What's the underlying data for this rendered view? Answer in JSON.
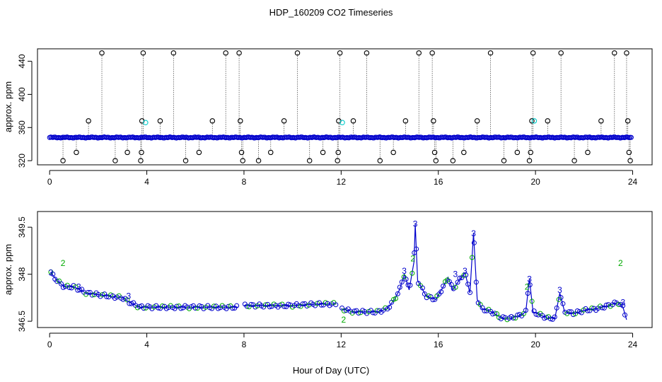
{
  "title": "HDP_160209  CO2 Timeseries",
  "xlabel": "Hour of Day (UTC)",
  "chart_data": [
    {
      "type": "scatter",
      "panel": "top",
      "ylabel": "approx. ppm",
      "xlim": [
        -0.5,
        24.8
      ],
      "ylim": [
        315,
        455
      ],
      "xticks": [
        0,
        4,
        8,
        12,
        16,
        20,
        24
      ],
      "yticks": [
        320,
        360,
        400,
        440
      ],
      "baseline": 348,
      "colors": {
        "baseline": "#0000cc",
        "spikes": "#000000",
        "cyan": "#00cccc"
      },
      "spikes": [
        [
          0.55,
          320
        ],
        [
          1.1,
          330
        ],
        [
          1.6,
          368
        ],
        [
          2.15,
          450
        ],
        [
          2.7,
          320
        ],
        [
          3.2,
          330
        ],
        [
          3.75,
          320
        ],
        [
          3.78,
          330
        ],
        [
          3.8,
          368
        ],
        [
          3.85,
          450
        ],
        [
          4.55,
          368
        ],
        [
          5.1,
          450
        ],
        [
          5.6,
          320
        ],
        [
          6.15,
          330
        ],
        [
          6.7,
          368
        ],
        [
          7.25,
          450
        ],
        [
          7.8,
          450
        ],
        [
          7.85,
          368
        ],
        [
          7.9,
          330
        ],
        [
          7.95,
          320
        ],
        [
          8.6,
          320
        ],
        [
          9.1,
          330
        ],
        [
          9.65,
          368
        ],
        [
          10.2,
          450
        ],
        [
          10.7,
          320
        ],
        [
          11.25,
          330
        ],
        [
          11.85,
          320
        ],
        [
          11.88,
          330
        ],
        [
          11.9,
          368
        ],
        [
          11.95,
          450
        ],
        [
          12.5,
          368
        ],
        [
          13.05,
          450
        ],
        [
          13.6,
          320
        ],
        [
          14.15,
          330
        ],
        [
          14.65,
          368
        ],
        [
          15.2,
          450
        ],
        [
          15.75,
          450
        ],
        [
          15.8,
          368
        ],
        [
          15.85,
          330
        ],
        [
          15.9,
          320
        ],
        [
          16.6,
          320
        ],
        [
          17.05,
          330
        ],
        [
          17.6,
          368
        ],
        [
          18.15,
          450
        ],
        [
          18.7,
          320
        ],
        [
          19.25,
          330
        ],
        [
          19.75,
          320
        ],
        [
          19.8,
          330
        ],
        [
          19.85,
          368
        ],
        [
          19.9,
          450
        ],
        [
          20.5,
          368
        ],
        [
          21.05,
          450
        ],
        [
          21.6,
          320
        ],
        [
          22.15,
          330
        ],
        [
          22.7,
          368
        ],
        [
          23.25,
          450
        ],
        [
          23.75,
          450
        ],
        [
          23.8,
          368
        ],
        [
          23.85,
          330
        ],
        [
          23.9,
          320
        ]
      ],
      "cyan_points": [
        [
          3.95,
          366
        ],
        [
          12.05,
          366
        ],
        [
          19.95,
          368
        ]
      ]
    },
    {
      "type": "line",
      "panel": "bottom",
      "ylabel": "approx. ppm",
      "xlim": [
        -0.5,
        24.8
      ],
      "ylim": [
        346.3,
        350.0
      ],
      "xticks": [
        0,
        4,
        8,
        12,
        16,
        20,
        24
      ],
      "yticks": [
        346.5,
        348.0,
        349.5
      ],
      "colors": {
        "series": "#0000cc",
        "marker_2": "#00aa00",
        "marker_3": "#0000cc"
      },
      "series": [
        {
          "values": [
            [
              0.05,
              348.05
            ],
            [
              0.3,
              347.8
            ],
            [
              0.6,
              347.6
            ],
            [
              1.0,
              347.6
            ],
            [
              1.5,
              347.4
            ],
            [
              2.0,
              347.35
            ],
            [
              2.5,
              347.3
            ],
            [
              3.0,
              347.25
            ],
            [
              3.3,
              347.1
            ],
            [
              3.7,
              346.95
            ],
            [
              4.0,
              346.95
            ],
            [
              5.0,
              346.95
            ],
            [
              6.0,
              346.95
            ],
            [
              7.0,
              346.95
            ],
            [
              7.75,
              346.95
            ],
            [
              7.9,
              null
            ],
            [
              8.0,
              347.0
            ],
            [
              9.0,
              347.0
            ],
            [
              10.0,
              347.0
            ],
            [
              11.0,
              347.05
            ],
            [
              11.8,
              347.05
            ],
            [
              11.9,
              null
            ],
            [
              12.0,
              346.9
            ],
            [
              12.5,
              346.8
            ],
            [
              13.0,
              346.8
            ],
            [
              13.5,
              346.8
            ],
            [
              13.9,
              346.9
            ],
            [
              14.2,
              347.2
            ],
            [
              14.4,
              347.5
            ],
            [
              14.6,
              348.0
            ],
            [
              14.8,
              347.5
            ],
            [
              15.0,
              348.4
            ],
            [
              15.05,
              349.6
            ],
            [
              15.15,
              347.8
            ],
            [
              15.5,
              347.3
            ],
            [
              15.9,
              347.2
            ],
            [
              16.2,
              347.6
            ],
            [
              16.4,
              347.9
            ],
            [
              16.6,
              347.5
            ],
            [
              16.85,
              347.8
            ],
            [
              17.1,
              348.05
            ],
            [
              17.3,
              347.4
            ],
            [
              17.45,
              349.3
            ],
            [
              17.6,
              347.2
            ],
            [
              17.8,
              346.9
            ],
            [
              18.2,
              346.8
            ],
            [
              18.6,
              346.6
            ],
            [
              19.0,
              346.6
            ],
            [
              19.4,
              346.7
            ],
            [
              19.6,
              346.8
            ],
            [
              19.75,
              347.85
            ],
            [
              19.9,
              346.8
            ],
            [
              20.2,
              346.7
            ],
            [
              20.5,
              346.6
            ],
            [
              20.8,
              346.6
            ],
            [
              21.0,
              347.4
            ],
            [
              21.2,
              346.8
            ],
            [
              21.6,
              346.75
            ],
            [
              22.0,
              346.85
            ],
            [
              22.5,
              346.9
            ],
            [
              23.0,
              347.0
            ],
            [
              23.4,
              347.1
            ],
            [
              23.6,
              346.95
            ],
            [
              23.75,
              346.55
            ]
          ]
        }
      ],
      "markers": [
        [
          0.05,
          348.05,
          "3"
        ],
        [
          0.55,
          348.35,
          "2"
        ],
        [
          1.2,
          347.6,
          "3"
        ],
        [
          14.6,
          348.1,
          "3"
        ],
        [
          14.95,
          348.5,
          "2"
        ],
        [
          15.05,
          349.6,
          "3"
        ],
        [
          16.7,
          348.0,
          "3"
        ],
        [
          17.1,
          348.1,
          "3"
        ],
        [
          17.45,
          349.3,
          "3"
        ],
        [
          19.75,
          347.85,
          "3"
        ],
        [
          19.65,
          347.6,
          "2"
        ],
        [
          21.0,
          347.5,
          "3"
        ],
        [
          23.5,
          348.35,
          "2"
        ],
        [
          23.6,
          347.1,
          "3"
        ],
        [
          12.1,
          346.55,
          "2"
        ],
        [
          3.25,
          347.3,
          "3"
        ]
      ]
    }
  ]
}
